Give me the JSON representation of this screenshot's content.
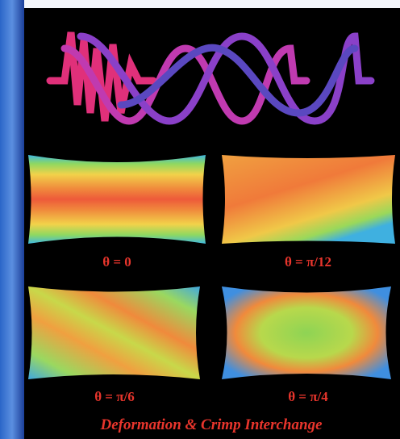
{
  "panels": [
    {
      "label": "θ = 0"
    },
    {
      "label": "θ = π/12"
    },
    {
      "label": "θ = π/6"
    },
    {
      "label": "θ = π/4"
    }
  ],
  "caption": "Deformation & Crimp Interchange"
}
